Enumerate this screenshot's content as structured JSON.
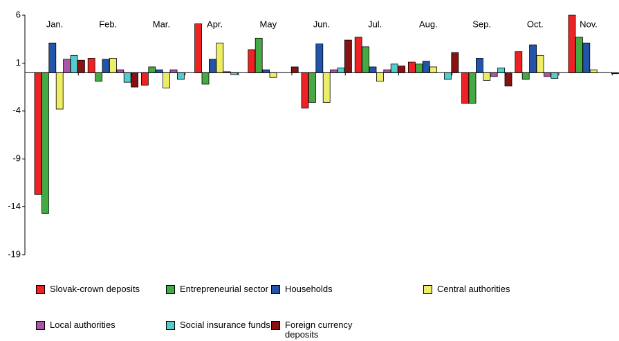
{
  "chart_data": {
    "type": "bar",
    "categories": [
      "Jan.",
      "Feb.",
      "Mar.",
      "Apr.",
      "May",
      "Jun.",
      "Jul.",
      "Aug.",
      "Sep.",
      "Oct.",
      "Nov."
    ],
    "series": [
      {
        "name": "Slovak-crown deposits",
        "color": "#ee2222",
        "values": [
          -12.7,
          1.5,
          -1.3,
          5.1,
          2.4,
          -3.7,
          3.7,
          1.1,
          -3.2,
          2.2,
          6.0
        ]
      },
      {
        "name": "Entrepreneurial sector",
        "color": "#44aa44",
        "values": [
          -14.7,
          -0.9,
          0.6,
          -1.2,
          3.6,
          -3.1,
          2.7,
          0.9,
          -3.2,
          -0.7,
          3.7
        ]
      },
      {
        "name": "Households",
        "color": "#2255aa",
        "values": [
          3.1,
          1.4,
          0.3,
          1.4,
          0.3,
          3.0,
          0.6,
          1.2,
          1.5,
          2.9,
          3.1
        ]
      },
      {
        "name": "Central authorities",
        "color": "#eeee66",
        "values": [
          -3.8,
          1.5,
          -1.6,
          3.1,
          -0.5,
          -3.1,
          -0.9,
          0.6,
          -0.8,
          1.8,
          0.3
        ]
      },
      {
        "name": "Local authorities",
        "color": "#aa55aa",
        "values": [
          1.4,
          0.3,
          0.3,
          0.1,
          0,
          0.3,
          0.3,
          0,
          -0.4,
          -0.4,
          0
        ]
      },
      {
        "name": "Social insurance funds",
        "color": "#55cccc",
        "values": [
          1.8,
          -1.0,
          -0.7,
          -0.2,
          0,
          0.5,
          0.9,
          -0.7,
          0.5,
          -0.6,
          0
        ]
      },
      {
        "name": "Foreign currency deposits",
        "color": "#881111",
        "values": [
          1.3,
          -1.5,
          0,
          0,
          0.6,
          3.4,
          0.7,
          2.1,
          -1.4,
          0,
          -0.1
        ]
      }
    ],
    "ylim": [
      -19,
      6
    ],
    "yticks": [
      -19,
      -14,
      -9,
      -4,
      1,
      6
    ]
  }
}
